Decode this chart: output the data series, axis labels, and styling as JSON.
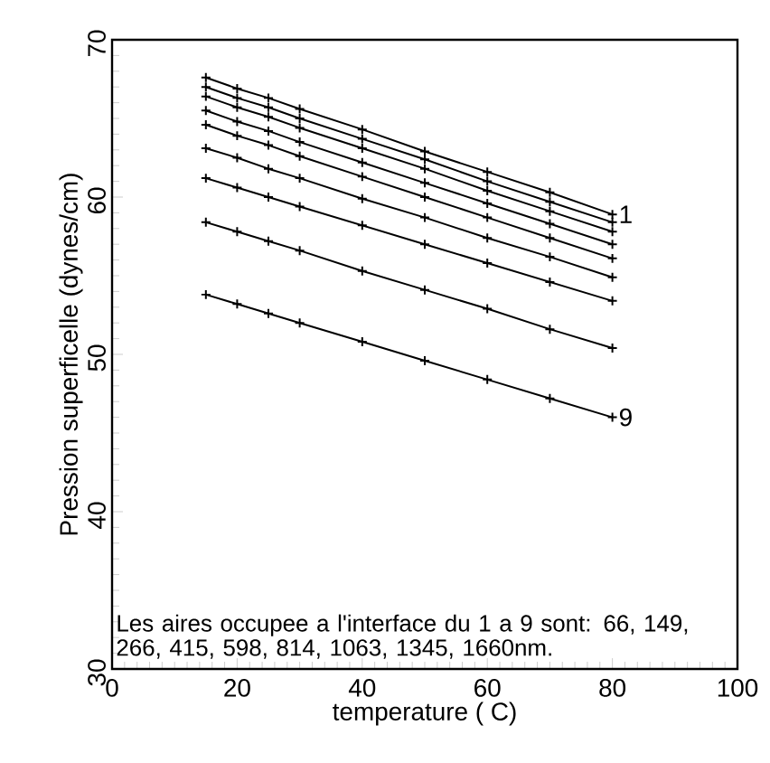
{
  "chart_data": {
    "type": "line",
    "xlabel": "temperature ( C)",
    "ylabel": "Pression superficelle (dynes/cm)",
    "x": [
      15,
      20,
      25,
      30,
      40,
      50,
      60,
      70,
      80
    ],
    "series": [
      {
        "name": "1",
        "color": "#000000",
        "values": [
          67.6,
          66.9,
          66.3,
          65.6,
          64.3,
          62.9,
          61.6,
          60.3,
          58.9
        ]
      },
      {
        "color": "#000000",
        "values": [
          67.0,
          66.3,
          65.7,
          65.0,
          63.7,
          62.4,
          61.0,
          59.7,
          58.4
        ]
      },
      {
        "color": "#000000",
        "values": [
          66.4,
          65.7,
          65.1,
          64.4,
          63.1,
          61.8,
          60.4,
          59.1,
          57.8
        ]
      },
      {
        "color": "#000000",
        "values": [
          65.5,
          64.8,
          64.2,
          63.5,
          62.2,
          60.9,
          59.6,
          58.3,
          57.0
        ]
      },
      {
        "color": "#000000",
        "values": [
          64.6,
          63.9,
          63.3,
          62.6,
          61.3,
          60.0,
          58.7,
          57.4,
          56.1
        ]
      },
      {
        "color": "#000000",
        "values": [
          63.1,
          62.5,
          61.8,
          61.2,
          59.9,
          58.7,
          57.4,
          56.2,
          54.9
        ]
      },
      {
        "color": "#000000",
        "values": [
          61.2,
          60.6,
          60.0,
          59.4,
          58.2,
          57.0,
          55.8,
          54.6,
          53.4
        ]
      },
      {
        "color": "#000000",
        "values": [
          58.4,
          57.8,
          57.2,
          56.6,
          55.3,
          54.1,
          52.9,
          51.6,
          50.4
        ]
      },
      {
        "name": "9",
        "color": "#000000",
        "values": [
          53.8,
          53.2,
          52.6,
          52.0,
          50.8,
          49.6,
          48.4,
          47.2,
          46.0
        ]
      }
    ],
    "xlim": [
      0,
      100
    ],
    "xticks": [
      0,
      20,
      40,
      60,
      80,
      100
    ],
    "ylim": [
      30,
      70
    ],
    "yticks": [
      30,
      40,
      50,
      60,
      70
    ],
    "annotations": [
      "Les aires occupee a l'interface du 1 a 9 sont: 66, 149, 266, 415, 598, 814, 1063, 1345, 1660nm."
    ],
    "marker": "cross",
    "line_style": "solid"
  }
}
